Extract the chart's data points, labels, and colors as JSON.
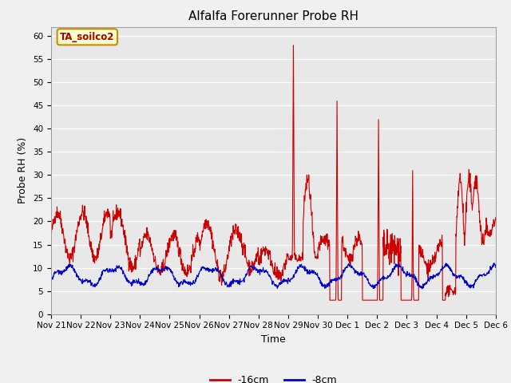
{
  "title": "Alfalfa Forerunner Probe RH",
  "ylabel": "Probe RH (%)",
  "xlabel": "Time",
  "ylim": [
    0,
    62
  ],
  "yticks": [
    0,
    5,
    10,
    15,
    20,
    25,
    30,
    35,
    40,
    45,
    50,
    55,
    60
  ],
  "fig_bg": "#f0f0f0",
  "plot_bg": "#e8e8e8",
  "line1_color": "#cc0000",
  "line2_color": "#0000cc",
  "line1_label": "-16cm",
  "line2_label": "-8cm",
  "annotation_text": "TA_soilco2",
  "annotation_bg": "#ffffcc",
  "annotation_border": "#cc8800",
  "annotation_text_color": "#aa0000",
  "xtick_labels": [
    "Nov 21",
    "Nov 22",
    "Nov 23",
    "Nov 24",
    "Nov 25",
    "Nov 26",
    "Nov 27",
    "Nov 28",
    "Nov 29",
    "Nov 30",
    "Dec 1",
    "Dec 2",
    "Dec 3",
    "Dec 4",
    "Dec 5",
    "Dec 6"
  ],
  "grid_color": "#ffffff",
  "title_fontsize": 11,
  "axis_fontsize": 9,
  "tick_fontsize": 7.5
}
